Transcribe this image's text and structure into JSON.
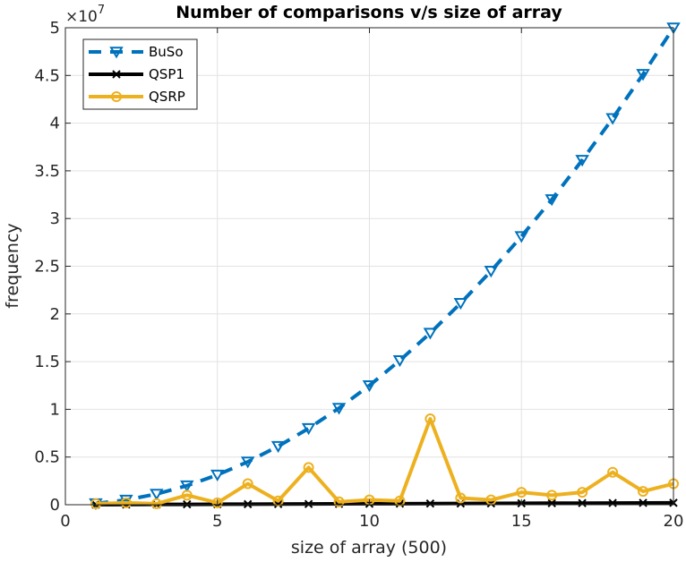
{
  "chart_data": {
    "type": "line",
    "title": "Number of comparisons v/s size of array",
    "xlabel": "size of array (500)",
    "ylabel": "frequency",
    "xlim": [
      0,
      20
    ],
    "ylim": [
      0,
      5
    ],
    "y_exponent_label": "×10",
    "y_exponent_power": "7",
    "x_ticks": [
      0,
      5,
      10,
      15,
      20
    ],
    "x_tick_labels": [
      "0",
      "5",
      "10",
      "15",
      "20"
    ],
    "y_ticks": [
      0,
      0.5,
      1,
      1.5,
      2,
      2.5,
      3,
      3.5,
      4,
      4.5,
      5
    ],
    "y_tick_labels": [
      "0",
      "0.5",
      "1",
      "1.5",
      "2",
      "2.5",
      "3",
      "3.5",
      "4",
      "4.5",
      "5"
    ],
    "grid": true,
    "legend_position": "top-left",
    "x": [
      1,
      2,
      3,
      4,
      5,
      6,
      7,
      8,
      9,
      10,
      11,
      12,
      13,
      14,
      15,
      16,
      17,
      18,
      19,
      20
    ],
    "series": [
      {
        "name": "BuSo",
        "color": "#0072bd",
        "line_style": "dashed",
        "marker": "triangle-down",
        "values": [
          0.0125,
          0.05,
          0.1125,
          0.2,
          0.3125,
          0.45,
          0.6125,
          0.8,
          1.0125,
          1.25,
          1.5125,
          1.8,
          2.1125,
          2.45,
          2.8125,
          3.2,
          3.6125,
          4.05,
          4.5125,
          5.0
        ]
      },
      {
        "name": "QSP1",
        "color": "#000000",
        "line_style": "solid",
        "marker": "x",
        "values": [
          0.001,
          0.002,
          0.003,
          0.004,
          0.005,
          0.006,
          0.007,
          0.008,
          0.009,
          0.01,
          0.011,
          0.012,
          0.013,
          0.014,
          0.015,
          0.016,
          0.017,
          0.018,
          0.019,
          0.02
        ]
      },
      {
        "name": "QSRP",
        "color": "#edb120",
        "line_style": "solid",
        "marker": "circle",
        "values": [
          0.01,
          0.02,
          0.01,
          0.1,
          0.02,
          0.22,
          0.04,
          0.39,
          0.03,
          0.05,
          0.04,
          0.9,
          0.07,
          0.05,
          0.13,
          0.1,
          0.13,
          0.34,
          0.14,
          0.22
        ]
      }
    ]
  }
}
